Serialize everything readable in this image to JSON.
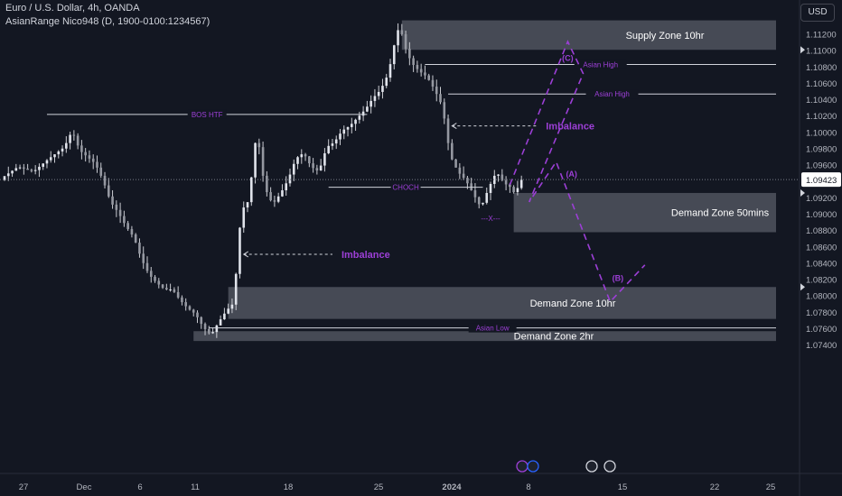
{
  "header": {
    "symbol": "Euro / U.S. Dollar, 4h, OANDA",
    "indicator": "AsianRange Nico948 (D, 1900-0100:1234567)",
    "currency": "USD"
  },
  "colors": {
    "background": "#131722",
    "candle": "#c9cbd1",
    "zone_fill": "#50535e",
    "annotation": "#9c3fd6",
    "axis_text": "#b2b5be",
    "line": "#d1d4dc"
  },
  "chart_data": {
    "type": "candlestick",
    "title": "Euro / U.S. Dollar, 4h, OANDA",
    "xlabel": "",
    "ylabel": "",
    "ylim": [
      1.0725,
      1.1145
    ],
    "x_ticks": [
      "27",
      "Dec",
      "6",
      "11",
      "18",
      "25",
      "2024",
      "8",
      "15",
      "22",
      "25"
    ],
    "y_ticks": [
      "1.11200",
      "1.11000",
      "1.10800",
      "1.10600",
      "1.10400",
      "1.10200",
      "1.10000",
      "1.09800",
      "1.09600",
      "1.09200",
      "1.09000",
      "1.08800",
      "1.08600",
      "1.08400",
      "1.08200",
      "1.08000",
      "1.07800",
      "1.07600",
      "1.07400"
    ],
    "last_price": "1.09423",
    "close_path": [
      [
        0,
        1.0945
      ],
      [
        4,
        1.0958
      ],
      [
        8,
        1.0952
      ],
      [
        12,
        1.0968
      ],
      [
        16,
        1.0982
      ],
      [
        18,
        1.1002
      ],
      [
        20,
        1.0978
      ],
      [
        24,
        1.0962
      ],
      [
        26,
        1.0942
      ],
      [
        28,
        1.0915
      ],
      [
        30,
        1.0902
      ],
      [
        32,
        1.0885
      ],
      [
        34,
        1.0872
      ],
      [
        36,
        1.0845
      ],
      [
        38,
        1.0826
      ],
      [
        40,
        1.0816
      ],
      [
        42,
        1.0808
      ],
      [
        44,
        1.0808
      ],
      [
        46,
        1.0795
      ],
      [
        48,
        1.0785
      ],
      [
        50,
        1.0778
      ],
      [
        52,
        1.0762
      ],
      [
        54,
        1.0752
      ],
      [
        56,
        1.0768
      ],
      [
        58,
        1.0782
      ],
      [
        60,
        1.0792
      ],
      [
        61,
        1.0862
      ],
      [
        62,
        1.0905
      ],
      [
        64,
        1.0918
      ],
      [
        65,
        1.0972
      ],
      [
        66,
        1.1002
      ],
      [
        67,
        1.0962
      ],
      [
        68,
        1.0932
      ],
      [
        70,
        1.0912
      ],
      [
        72,
        1.0925
      ],
      [
        74,
        1.0942
      ],
      [
        76,
        1.0968
      ],
      [
        78,
        1.0975
      ],
      [
        80,
        1.0958
      ],
      [
        82,
        1.0952
      ],
      [
        84,
        1.0982
      ],
      [
        86,
        1.0988
      ],
      [
        88,
        1.1002
      ],
      [
        90,
        1.1008
      ],
      [
        92,
        1.1018
      ],
      [
        94,
        1.1028
      ],
      [
        96,
        1.1042
      ],
      [
        98,
        1.1052
      ],
      [
        100,
        1.1072
      ],
      [
        101,
        1.1095
      ],
      [
        102,
        1.1118
      ],
      [
        103,
        1.1132
      ],
      [
        104,
        1.1108
      ],
      [
        106,
        1.1085
      ],
      [
        108,
        1.1075
      ],
      [
        110,
        1.1068
      ],
      [
        112,
        1.1052
      ],
      [
        114,
        1.1032
      ],
      [
        116,
        1.0972
      ],
      [
        118,
        1.0952
      ],
      [
        120,
        1.0942
      ],
      [
        122,
        1.0925
      ],
      [
        124,
        1.0908
      ],
      [
        126,
        1.0932
      ],
      [
        128,
        1.0952
      ],
      [
        130,
        1.0938
      ],
      [
        132,
        1.0932
      ],
      [
        133,
        1.0922
      ],
      [
        134,
        1.0942
      ]
    ],
    "zones": [
      {
        "label": "Supply Zone 10hr",
        "from": 103,
        "to": 200,
        "low": 1.1101,
        "high": 1.1137
      },
      {
        "label": "Demand Zone 50mins",
        "from": 132,
        "to": 200,
        "low": 1.0878,
        "high": 1.0926
      },
      {
        "label": "Demand Zone 10hr",
        "from": 58,
        "to": 200,
        "low": 1.0772,
        "high": 1.0811
      },
      {
        "label": "Demand Zone 2hr",
        "from": 49,
        "to": 200,
        "low": 1.0745,
        "high": 1.0757
      }
    ],
    "levels": [
      {
        "label": "BOS HTF",
        "from": 11,
        "to": 94,
        "price": 1.1022,
        "color": "#d1d4dc",
        "label_color": "#9c3fd6"
      },
      {
        "label": "Asian High",
        "from": 109,
        "to": 200,
        "price": 1.1083,
        "color": "#d1d4dc",
        "label_color": "#9c3fd6"
      },
      {
        "label": "Asian High",
        "from": 115,
        "to": 200,
        "price": 1.1047,
        "color": "#d1d4dc",
        "label_color": "#9c3fd6"
      },
      {
        "label": "CHOCH",
        "from": 84,
        "to": 124,
        "price": 1.0933,
        "color": "#d1d4dc",
        "label_color": "#9c3fd6"
      },
      {
        "label": "Asian Low",
        "from": 53,
        "to": 200,
        "price": 1.0761,
        "color": "#d1d4dc",
        "label_color": "#9c3fd6"
      }
    ],
    "annotations": [
      {
        "label": "Imbalance",
        "price": 1.1008,
        "from": 116,
        "to": 138
      },
      {
        "label": "Imbalance",
        "price": 1.0851,
        "from": 62,
        "to": 85
      },
      {
        "label": "---X---",
        "price": 1.0895,
        "at": 126
      }
    ],
    "projection": {
      "points": [
        [
          131,
          1.0936
        ],
        [
          146,
          1.1111
        ],
        [
          150,
          1.1072
        ],
        [
          136,
          1.0915
        ],
        [
          143,
          1.0964
        ],
        [
          157,
          1.0793
        ],
        [
          166,
          1.0838
        ]
      ],
      "labels": [
        {
          "text": "(C)",
          "at": 146,
          "price": 1.1092
        },
        {
          "text": "(A)",
          "at": 147,
          "price": 1.095
        },
        {
          "text": "(B)",
          "at": 159,
          "price": 1.0823
        }
      ]
    }
  }
}
